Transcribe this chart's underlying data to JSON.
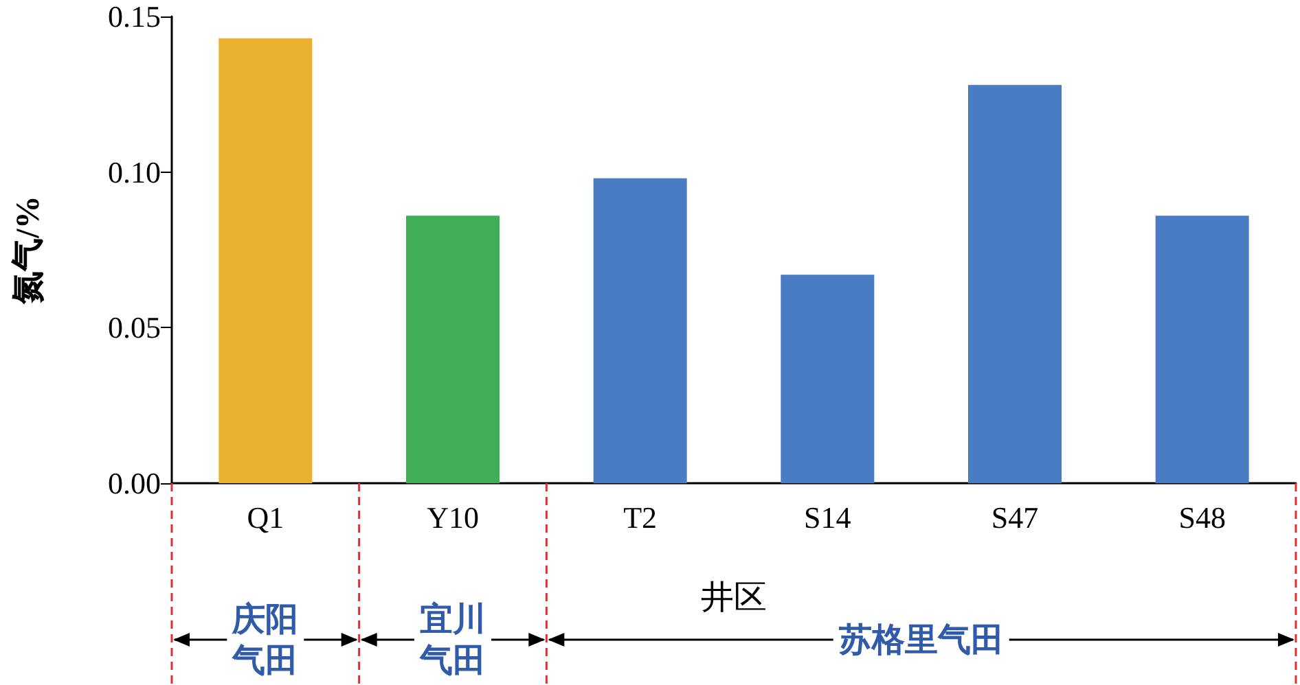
{
  "chart_data": {
    "type": "bar",
    "xlabel": "井区",
    "ylabel": "氮气/%",
    "categories": [
      "Q1",
      "Y10",
      "T2",
      "S14",
      "S47",
      "S48"
    ],
    "values": [
      0.143,
      0.086,
      0.098,
      0.067,
      0.128,
      0.086
    ],
    "colors": [
      "#e8b22e",
      "#3fae55",
      "#4a7cc4",
      "#4a7cc4",
      "#4a7cc4",
      "#4a7cc4"
    ],
    "ylim": [
      0,
      0.15
    ],
    "yticks": [
      {
        "value": 0,
        "label": "0.00"
      },
      {
        "value": 0.05,
        "label": "0.05"
      },
      {
        "value": 0.1,
        "label": "0.10"
      },
      {
        "value": 0.15,
        "label": "0.15"
      }
    ],
    "annotations": [
      "庆阳气田",
      "宜川气田",
      "苏格里气田"
    ],
    "grid": false
  }
}
